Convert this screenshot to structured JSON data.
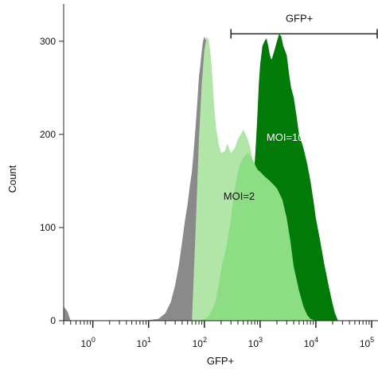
{
  "chart_data": {
    "type": "area",
    "title": "",
    "xlabel": "GFP+",
    "ylabel": "Count",
    "x_scale": "log",
    "xlim": [
      0.3,
      130000
    ],
    "ylim": [
      0,
      340
    ],
    "y_ticks": [
      0,
      100,
      200,
      300
    ],
    "x_ticks": [
      {
        "base": "10",
        "exp": "0",
        "value": 1
      },
      {
        "base": "10",
        "exp": "1",
        "value": 10
      },
      {
        "base": "10",
        "exp": "2",
        "value": 100
      },
      {
        "base": "10",
        "exp": "3",
        "value": 1000
      },
      {
        "base": "10",
        "exp": "4",
        "value": 10000
      },
      {
        "base": "10",
        "exp": "5",
        "value": 100000
      }
    ],
    "grid": false,
    "series": [
      {
        "color": "#8a8a8a",
        "x": [
          0.3,
          0.35,
          0.4,
          8,
          15,
          20,
          25,
          30,
          35,
          40,
          45,
          50,
          55,
          60,
          65,
          70,
          75,
          80,
          85,
          90,
          95,
          100,
          110,
          120,
          130,
          140,
          160,
          180,
          200,
          220,
          250,
          280,
          320
        ],
        "y": [
          15,
          10,
          0,
          0,
          2,
          8,
          20,
          38,
          60,
          85,
          108,
          125,
          145,
          160,
          185,
          210,
          235,
          262,
          275,
          290,
          300,
          305,
          300,
          288,
          270,
          248,
          210,
          165,
          120,
          80,
          40,
          15,
          0
        ]
      },
      {
        "name": "MOI=2",
        "color": "#b2e6a9",
        "x": [
          60,
          70,
          80,
          90,
          100,
          110,
          120,
          130,
          140,
          150,
          160,
          180,
          200,
          230,
          260,
          300,
          350,
          400,
          450,
          500,
          550,
          600,
          650,
          700,
          750,
          800,
          900,
          1000,
          1200,
          1500,
          2000,
          2500,
          3000,
          3500,
          4000,
          5000,
          6000,
          7000,
          8000,
          10000,
          12000
        ],
        "y": [
          0,
          100,
          195,
          255,
          290,
          305,
          302,
          285,
          260,
          230,
          210,
          190,
          180,
          182,
          190,
          180,
          185,
          195,
          200,
          205,
          200,
          195,
          188,
          180,
          170,
          162,
          160,
          158,
          150,
          145,
          138,
          125,
          105,
          80,
          55,
          30,
          12,
          4,
          0,
          0,
          0
        ]
      },
      {
        "name": "MOI=10",
        "color": "#017a08",
        "x": [
          300,
          350,
          400,
          450,
          500,
          550,
          600,
          650,
          700,
          750,
          800,
          850,
          900,
          950,
          1000,
          1100,
          1200,
          1300,
          1400,
          1500,
          1600,
          1800,
          2000,
          2200,
          2400,
          2600,
          2800,
          3000,
          3300,
          3600,
          4000,
          4500,
          5000,
          6000,
          7000,
          8000,
          9000,
          10000,
          12000,
          14000,
          16000,
          18000,
          20000,
          22000,
          25000
        ],
        "y": [
          0,
          8,
          20,
          38,
          60,
          85,
          105,
          120,
          132,
          150,
          170,
          195,
          225,
          255,
          275,
          295,
          300,
          303,
          295,
          285,
          280,
          290,
          300,
          308,
          305,
          295,
          290,
          285,
          265,
          250,
          240,
          220,
          200,
          185,
          168,
          150,
          130,
          110,
          85,
          62,
          45,
          30,
          18,
          8,
          0
        ]
      },
      {
        "color": "#8ddd84",
        "x": [
          80,
          100,
          120,
          140,
          160,
          180,
          200,
          250,
          300,
          350,
          400,
          450,
          500,
          550,
          600,
          650,
          700,
          750,
          800,
          900,
          1000,
          1200,
          1500,
          1800,
          2000,
          2500,
          3000,
          3500,
          4000,
          5000,
          6000,
          7000,
          8000,
          10000,
          12000
        ],
        "y": [
          0,
          2,
          5,
          12,
          22,
          38,
          55,
          80,
          110,
          140,
          160,
          170,
          175,
          178,
          180,
          178,
          175,
          172,
          168,
          162,
          160,
          155,
          150,
          145,
          142,
          130,
          110,
          85,
          58,
          32,
          15,
          6,
          2,
          0,
          0
        ]
      }
    ],
    "gate": {
      "label": "GFP+",
      "x_start": 300,
      "x_end": 130000,
      "y": 308
    },
    "annotations": [
      {
        "text": "MOI=10",
        "x": 2800,
        "y": 193,
        "color": "#ffffff"
      },
      {
        "text": "MOI=2",
        "x": 420,
        "y": 130,
        "color": "#111111"
      }
    ]
  }
}
